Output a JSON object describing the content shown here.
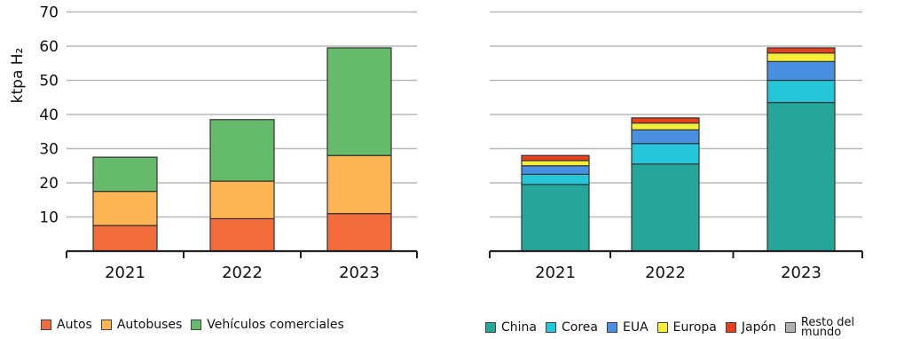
{
  "chart_data": [
    {
      "type": "bar",
      "stacked": true,
      "ylabel": "ktpa H₂",
      "ylim": [
        0,
        70
      ],
      "yticks": [
        10,
        20,
        30,
        40,
        50,
        60,
        70
      ],
      "grid": true,
      "legend_position": "bottom",
      "categories": [
        "2021",
        "2022",
        "2023"
      ],
      "series": [
        {
          "name": "Autos",
          "color": "#f26b3a",
          "values": [
            7.5,
            9.5,
            11
          ]
        },
        {
          "name": "Autobuses",
          "color": "#fdb553",
          "values": [
            10,
            11,
            17
          ]
        },
        {
          "name": "Vehículos comerciales",
          "color": "#66bb6a",
          "values": [
            10,
            18,
            31.5
          ]
        }
      ]
    },
    {
      "type": "bar",
      "stacked": true,
      "ylim": [
        0,
        70
      ],
      "grid": true,
      "legend_position": "bottom",
      "categories": [
        "2021",
        "2022",
        "2023"
      ],
      "series": [
        {
          "name": "China",
          "color": "#26a69a",
          "values": [
            19.5,
            25.5,
            43.5
          ]
        },
        {
          "name": "Corea",
          "color": "#26c6da",
          "values": [
            3,
            6,
            6.5
          ]
        },
        {
          "name": "EUA",
          "color": "#4a90e2",
          "values": [
            2.5,
            4,
            5.5
          ]
        },
        {
          "name": "Europa",
          "color": "#f5ef3a",
          "values": [
            1.5,
            2,
            2.5
          ]
        },
        {
          "name": "Japón",
          "color": "#e8401c",
          "values": [
            1.5,
            1.5,
            1.5
          ]
        },
        {
          "name": "Resto del mundo",
          "color": "#b0b0b0",
          "values": [
            0,
            0,
            0
          ]
        }
      ]
    }
  ]
}
